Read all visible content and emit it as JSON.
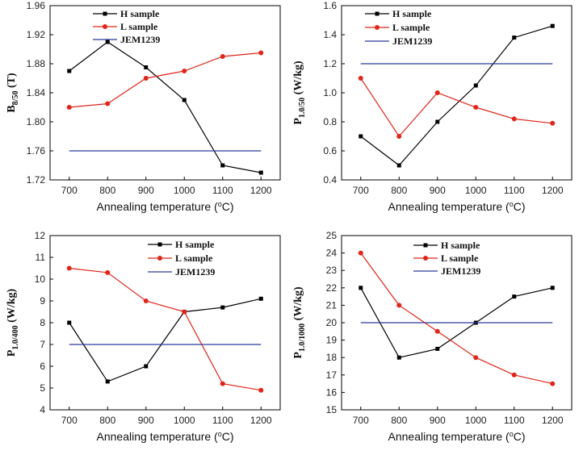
{
  "colors": {
    "h": "#000000",
    "l": "#e0251b",
    "jem": "#2b3a9a"
  },
  "legend": {
    "h": "H sample",
    "l": "L sample",
    "jem": "JEM1239"
  },
  "xlabel": "Annealing temperature (",
  "xlabel_unit": "C)",
  "xlabel_sup": "o",
  "chart_data": [
    {
      "type": "line",
      "x": [
        700,
        800,
        900,
        1000,
        1100,
        1200
      ],
      "xlim": [
        650,
        1250
      ],
      "xticks": [
        "700",
        "800",
        "900",
        "1000",
        "1100",
        "1200"
      ],
      "ylim": [
        1.72,
        1.96
      ],
      "yticks": [
        "1.72",
        "1.76",
        "1.80",
        "1.84",
        "1.88",
        "1.92",
        "1.96"
      ],
      "ylabel_main": "B",
      "ylabel_sub": "8/50",
      "ylabel_unit": " (T)",
      "series": [
        {
          "name": "H sample",
          "values": [
            1.87,
            1.91,
            1.875,
            1.83,
            1.74,
            1.73
          ]
        },
        {
          "name": "L sample",
          "values": [
            1.82,
            1.825,
            1.86,
            1.87,
            1.89,
            1.895
          ]
        },
        {
          "name": "JEM1239",
          "values": [
            1.76,
            1.76,
            1.76,
            1.76,
            1.76,
            1.76
          ]
        }
      ]
    },
    {
      "type": "line",
      "x": [
        700,
        800,
        900,
        1000,
        1100,
        1200
      ],
      "xlim": [
        650,
        1250
      ],
      "xticks": [
        "700",
        "800",
        "900",
        "1000",
        "1100",
        "1200"
      ],
      "ylim": [
        0.4,
        1.6
      ],
      "yticks": [
        "0.4",
        "0.6",
        "0.8",
        "1.0",
        "1.2",
        "1.4",
        "1.6"
      ],
      "ylabel_main": "P",
      "ylabel_sub": "1.0/50",
      "ylabel_unit": " (W/kg)",
      "series": [
        {
          "name": "H sample",
          "values": [
            0.7,
            0.5,
            0.8,
            1.05,
            1.38,
            1.46
          ]
        },
        {
          "name": "L sample",
          "values": [
            1.1,
            0.7,
            1.0,
            0.9,
            0.82,
            0.79
          ]
        },
        {
          "name": "JEM1239",
          "values": [
            1.2,
            1.2,
            1.2,
            1.2,
            1.2,
            1.2
          ]
        }
      ]
    },
    {
      "type": "line",
      "x": [
        700,
        800,
        900,
        1000,
        1100,
        1200
      ],
      "xlim": [
        650,
        1250
      ],
      "xticks": [
        "700",
        "800",
        "900",
        "1000",
        "1100",
        "1200"
      ],
      "ylim": [
        4,
        12
      ],
      "yticks": [
        "4",
        "5",
        "6",
        "7",
        "8",
        "9",
        "10",
        "11",
        "12"
      ],
      "ylabel_main": "P",
      "ylabel_sub": "1.0/400",
      "ylabel_unit": " (W/kg)",
      "series": [
        {
          "name": "H sample",
          "values": [
            8.0,
            5.3,
            6.0,
            8.5,
            8.7,
            9.1
          ]
        },
        {
          "name": "L sample",
          "values": [
            10.5,
            10.3,
            9.0,
            8.5,
            5.2,
            4.9
          ]
        },
        {
          "name": "JEM1239",
          "values": [
            7,
            7,
            7,
            7,
            7,
            7
          ]
        }
      ]
    },
    {
      "type": "line",
      "x": [
        700,
        800,
        900,
        1000,
        1100,
        1200
      ],
      "xlim": [
        650,
        1250
      ],
      "xticks": [
        "700",
        "800",
        "900",
        "1000",
        "1100",
        "1200"
      ],
      "ylim": [
        15,
        25
      ],
      "yticks": [
        "15",
        "16",
        "17",
        "18",
        "19",
        "20",
        "21",
        "22",
        "23",
        "24",
        "25"
      ],
      "ylabel_main": "P",
      "ylabel_sub": "1.0/1000",
      "ylabel_unit": " (W/kg)",
      "series": [
        {
          "name": "H sample",
          "values": [
            22.0,
            18.0,
            18.5,
            20.0,
            21.5,
            22.0
          ]
        },
        {
          "name": "L sample",
          "values": [
            24.0,
            21.0,
            19.5,
            18.0,
            17.0,
            16.5
          ]
        },
        {
          "name": "JEM1239",
          "values": [
            20,
            20,
            20,
            20,
            20,
            20
          ]
        }
      ]
    }
  ]
}
